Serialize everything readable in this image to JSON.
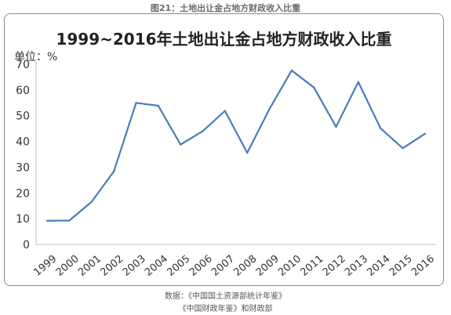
{
  "figure_caption": "图21：土地出让金占地方财政收入比重",
  "source_line1": "数据：《中国国土资源部统计年鉴》",
  "source_line2": "《中国财政年鉴》和财政部",
  "chart_data": {
    "type": "line",
    "title": "1999~2016年土地出让金占地方财政收入比重",
    "unit_label": "单位：%",
    "xlabel": "",
    "ylabel": "",
    "categories": [
      "1999",
      "2000",
      "2001",
      "2002",
      "2003",
      "2004",
      "2005",
      "2006",
      "2007",
      "2008",
      "2009",
      "2010",
      "2011",
      "2012",
      "2013",
      "2014",
      "2015",
      "2016"
    ],
    "series": [
      {
        "values": [
          9.2,
          9.3,
          16.6,
          28.4,
          55.0,
          53.9,
          38.8,
          44.0,
          51.9,
          35.6,
          52.6,
          67.6,
          61.0,
          45.7,
          63.1,
          45.1,
          37.4,
          43.0
        ],
        "color": "#4a7bbd"
      }
    ],
    "ylim": [
      0,
      70
    ],
    "yticks": [
      0,
      10,
      20,
      30,
      40,
      50,
      60,
      70
    ],
    "grid": false
  }
}
